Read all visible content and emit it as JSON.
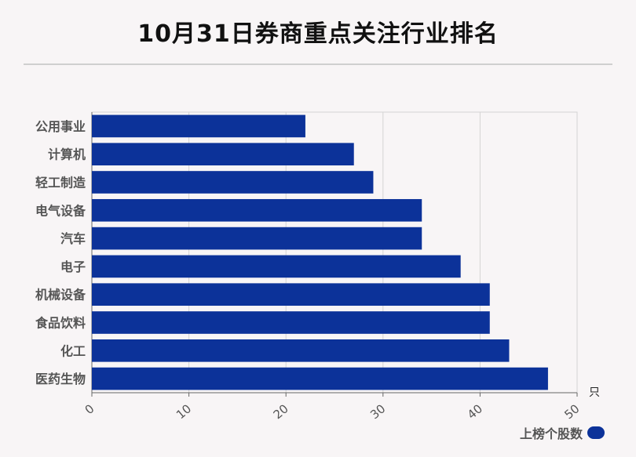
{
  "chart_data": {
    "type": "bar",
    "orientation": "horizontal",
    "title": "10月31日券商重点关注行业排名",
    "categories": [
      "公用事业",
      "计算机",
      "轻工制造",
      "电气设备",
      "汽车",
      "电子",
      "机械设备",
      "食品饮料",
      "化工",
      "医药生物"
    ],
    "series": [
      {
        "name": "上榜个股数",
        "values": [
          22,
          27,
          29,
          34,
          34,
          38,
          41,
          41,
          43,
          47
        ],
        "color": "#0c3299"
      }
    ],
    "xlim": [
      0,
      50
    ],
    "xticks": [
      "0",
      "10",
      "20",
      "30",
      "40",
      "50"
    ],
    "xunit": "只",
    "grid": true,
    "legend_position": "bottom-right"
  }
}
